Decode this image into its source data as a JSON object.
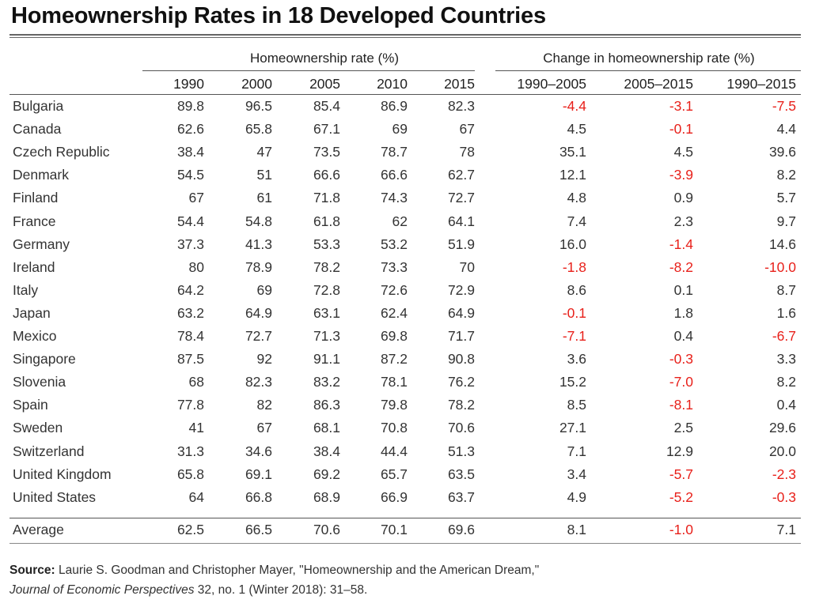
{
  "chart_data": {
    "type": "table",
    "title": "Homeownership Rates in 18 Developed Countries",
    "group_headers": [
      "Homeownership rate (%)",
      "Change in homeownership rate (%)"
    ],
    "columns": [
      "1990",
      "2000",
      "2005",
      "2010",
      "2015",
      "1990–2005",
      "2005–2015",
      "1990–2015"
    ],
    "rows": [
      {
        "country": "Bulgaria",
        "values": [
          "89.8",
          "96.5",
          "85.4",
          "86.9",
          "82.3",
          "-4.4",
          "-3.1",
          "-7.5"
        ]
      },
      {
        "country": "Canada",
        "values": [
          "62.6",
          "65.8",
          "67.1",
          "69",
          "67",
          "4.5",
          "-0.1",
          "4.4"
        ]
      },
      {
        "country": "Czech Republic",
        "values": [
          "38.4",
          "47",
          "73.5",
          "78.7",
          "78",
          "35.1",
          "4.5",
          "39.6"
        ]
      },
      {
        "country": "Denmark",
        "values": [
          "54.5",
          "51",
          "66.6",
          "66.6",
          "62.7",
          "12.1",
          "-3.9",
          "8.2"
        ]
      },
      {
        "country": "Finland",
        "values": [
          "67",
          "61",
          "71.8",
          "74.3",
          "72.7",
          "4.8",
          "0.9",
          "5.7"
        ]
      },
      {
        "country": "France",
        "values": [
          "54.4",
          "54.8",
          "61.8",
          "62",
          "64.1",
          "7.4",
          "2.3",
          "9.7"
        ]
      },
      {
        "country": "Germany",
        "values": [
          "37.3",
          "41.3",
          "53.3",
          "53.2",
          "51.9",
          "16.0",
          "-1.4",
          "14.6"
        ]
      },
      {
        "country": "Ireland",
        "values": [
          "80",
          "78.9",
          "78.2",
          "73.3",
          "70",
          "-1.8",
          "-8.2",
          "-10.0"
        ]
      },
      {
        "country": "Italy",
        "values": [
          "64.2",
          "69",
          "72.8",
          "72.6",
          "72.9",
          "8.6",
          "0.1",
          "8.7"
        ]
      },
      {
        "country": "Japan",
        "values": [
          "63.2",
          "64.9",
          "63.1",
          "62.4",
          "64.9",
          "-0.1",
          "1.8",
          "1.6"
        ]
      },
      {
        "country": "Mexico",
        "values": [
          "78.4",
          "72.7",
          "71.3",
          "69.8",
          "71.7",
          "-7.1",
          "0.4",
          "-6.7"
        ]
      },
      {
        "country": "Singapore",
        "values": [
          "87.5",
          "92",
          "91.1",
          "87.2",
          "90.8",
          "3.6",
          "-0.3",
          "3.3"
        ]
      },
      {
        "country": "Slovenia",
        "values": [
          "68",
          "82.3",
          "83.2",
          "78.1",
          "76.2",
          "15.2",
          "-7.0",
          "8.2"
        ]
      },
      {
        "country": "Spain",
        "values": [
          "77.8",
          "82",
          "86.3",
          "79.8",
          "78.2",
          "8.5",
          "-8.1",
          "0.4"
        ]
      },
      {
        "country": "Sweden",
        "values": [
          "41",
          "67",
          "68.1",
          "70.8",
          "70.6",
          "27.1",
          "2.5",
          "29.6"
        ]
      },
      {
        "country": "Switzerland",
        "values": [
          "31.3",
          "34.6",
          "38.4",
          "44.4",
          "51.3",
          "7.1",
          "12.9",
          "20.0"
        ]
      },
      {
        "country": "United Kingdom",
        "values": [
          "65.8",
          "69.1",
          "69.2",
          "65.7",
          "63.5",
          "3.4",
          "-5.7",
          "-2.3"
        ]
      },
      {
        "country": "United States",
        "values": [
          "64",
          "66.8",
          "68.9",
          "66.9",
          "63.7",
          "4.9",
          "-5.2",
          "-0.3"
        ]
      }
    ],
    "average": {
      "label": "Average",
      "values": [
        "62.5",
        "66.5",
        "70.6",
        "70.1",
        "69.6",
        "8.1",
        "-1.0",
        "7.1"
      ]
    },
    "negative_color": "#e8201a",
    "text_color": "#333333"
  },
  "source": {
    "label": "Source:",
    "text": "Laurie S. Goodman and Christopher Mayer, \"Homeownership and the American Dream,\"",
    "journal": "Journal of Economic Perspectives",
    "citation": "32, no. 1 (Winter 2018): 31–58."
  }
}
